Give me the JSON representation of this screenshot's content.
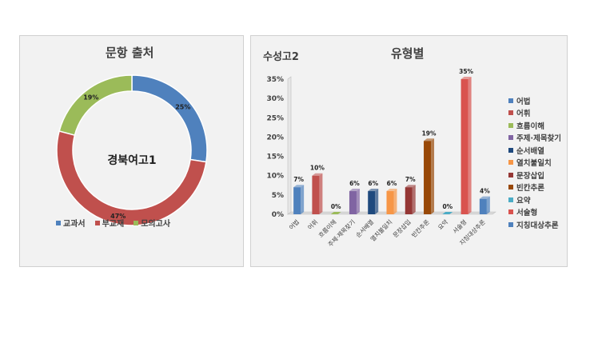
{
  "left_panel": {
    "title": "문항 출처",
    "center_label": "경북여고1"
  },
  "right_panel": {
    "subtitle": "수성고2",
    "title": "유형별"
  },
  "chart_data": [
    {
      "type": "pie",
      "style": "donut",
      "title": "문항 출처",
      "center_label": "경북여고1",
      "categories": [
        "교과서",
        "부교재",
        "모의고사"
      ],
      "values": [
        25,
        47,
        19
      ],
      "value_labels": [
        "25%",
        "47%",
        "19%"
      ],
      "colors": [
        "#4f81bd",
        "#c0504d",
        "#9bbb59"
      ],
      "legend_position": "bottom"
    },
    {
      "type": "bar",
      "style": "3d-columns",
      "title": "유형별",
      "subtitle": "수성고2",
      "categories": [
        "어법",
        "어휘",
        "흐름이해",
        "주제·제목찾기",
        "순서배열",
        "열치불일치",
        "문장삽입",
        "빈칸추론",
        "요약",
        "서술형",
        "지칭대상추론"
      ],
      "legend_labels": [
        "어법",
        "어휘",
        "흐름이해",
        "주제·제목찾기",
        "순서배열",
        "열치불일치",
        "문장삽입",
        "빈칸추론",
        "요약",
        "서술형",
        "지칭대상추론"
      ],
      "values": [
        7,
        10,
        0,
        6,
        6,
        6,
        7,
        19,
        0,
        35,
        4
      ],
      "value_labels": [
        "7%",
        "10%",
        "0%",
        "6%",
        "6%",
        "6%",
        "7%",
        "19%",
        "0%",
        "35%",
        "4%"
      ],
      "colors": [
        "#4f81bd",
        "#c0504d",
        "#9bbb59",
        "#8064a2",
        "#1f497d",
        "#f79646",
        "#953735",
        "#984807",
        "#4bacc6",
        "#d9534f",
        "#4f81bd"
      ],
      "ylim": [
        0,
        35
      ],
      "yticks": [
        "0%",
        "5%",
        "10%",
        "15%",
        "20%",
        "25%",
        "30%",
        "35%"
      ],
      "grid": false,
      "legend_position": "right"
    }
  ]
}
